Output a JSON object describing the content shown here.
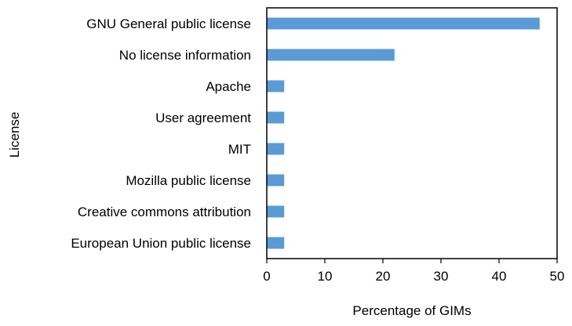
{
  "chart_data": {
    "type": "bar",
    "orientation": "horizontal",
    "categories": [
      "GNU General public license",
      "No license information",
      "Apache",
      "User agreement",
      "MIT",
      "Mozilla public license",
      "Creative commons attribution",
      "European Union public license"
    ],
    "values": [
      47,
      22,
      3,
      3,
      3,
      3,
      3,
      3
    ],
    "xlabel": "Percentage of  GIMs",
    "ylabel": "License",
    "xlim": [
      0,
      50
    ],
    "xticks": [
      "0",
      "10",
      "20",
      "30",
      "40",
      "50"
    ],
    "grid": false,
    "legend": "none",
    "bar_color": "#5B9BD5",
    "axis_color": "#000000"
  }
}
